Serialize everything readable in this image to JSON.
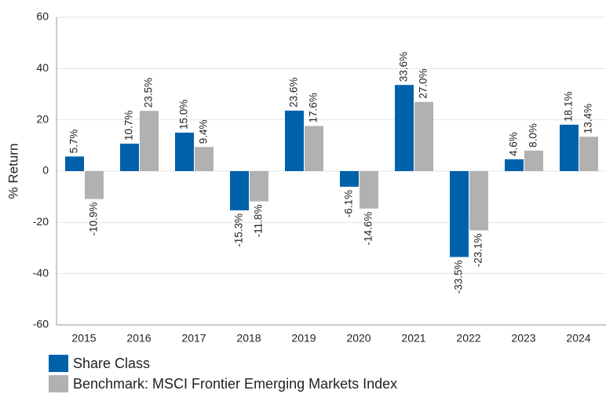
{
  "chart_data": {
    "type": "bar",
    "y_label": "% Return",
    "categories": [
      "2015",
      "2016",
      "2017",
      "2018",
      "2019",
      "2020",
      "2021",
      "2022",
      "2023",
      "2024"
    ],
    "series": [
      {
        "name": "Share Class",
        "color": "#0061ab",
        "values": [
          5.7,
          10.7,
          15.0,
          -15.3,
          23.6,
          -6.1,
          33.6,
          -33.5,
          4.6,
          18.1
        ],
        "value_labels": [
          "5.7%",
          "10.7%",
          "15.0%",
          "-15.3%",
          "23.6%",
          "-6.1%",
          "33.6%",
          "-33.5%",
          "4.6%",
          "18.1%"
        ]
      },
      {
        "name": "Benchmark: MSCI Frontier Emerging Markets Index",
        "color": "#b1b1b1",
        "values": [
          -10.9,
          23.5,
          9.4,
          -11.8,
          17.6,
          -14.6,
          27.0,
          -23.1,
          8.0,
          13.4
        ],
        "value_labels": [
          "-10.9%",
          "23.5%",
          "9.4%",
          "-11.8%",
          "17.6%",
          "-14.6%",
          "27.0%",
          "-23.1%",
          "8.0%",
          "13.4%"
        ]
      }
    ],
    "ylim": [
      -60,
      60
    ],
    "yticks": [
      -60,
      -40,
      -20,
      0,
      20,
      40,
      60
    ],
    "grid": true
  }
}
